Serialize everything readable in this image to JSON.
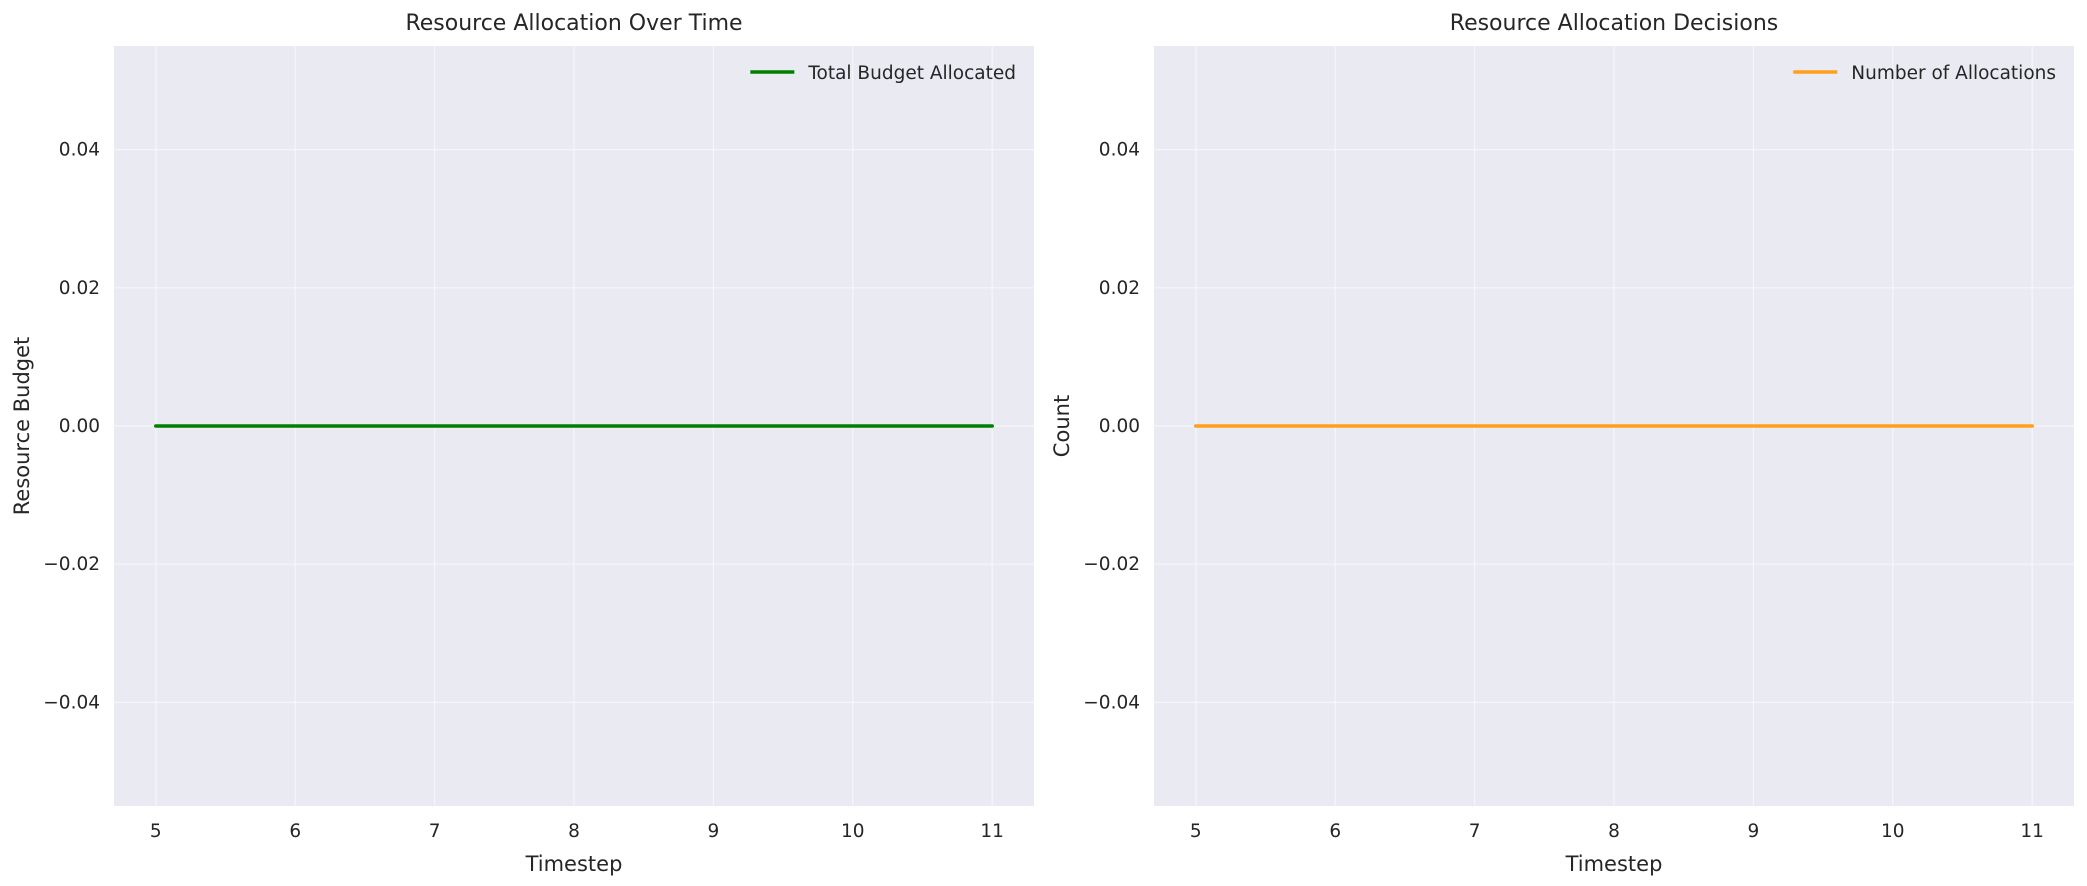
{
  "chart_data": [
    {
      "type": "line",
      "title": "Resource Allocation Over Time",
      "xlabel": "Timestep",
      "ylabel": "Resource Budget",
      "x": [
        5,
        6,
        7,
        8,
        9,
        10,
        11
      ],
      "series": [
        {
          "name": "Total Budget Allocated",
          "color": "#008000",
          "values": [
            0,
            0,
            0,
            0,
            0,
            0,
            0
          ]
        }
      ],
      "xlim": [
        4.7,
        11.3
      ],
      "ylim": [
        -0.055,
        0.055
      ],
      "xticks": [
        5,
        6,
        7,
        8,
        9,
        10,
        11
      ],
      "xtick_labels": [
        "5",
        "6",
        "7",
        "8",
        "9",
        "10",
        "11"
      ],
      "yticks": [
        -0.04,
        -0.02,
        0,
        0.02,
        0.04
      ],
      "ytick_labels": [
        "−0.04",
        "−0.02",
        "0.00",
        "0.02",
        "0.04"
      ],
      "grid": true,
      "legend_position": "top-right"
    },
    {
      "type": "line",
      "title": "Resource Allocation Decisions",
      "xlabel": "Timestep",
      "ylabel": "Count",
      "x": [
        5,
        6,
        7,
        8,
        9,
        10,
        11
      ],
      "series": [
        {
          "name": "Number of Allocations",
          "color": "#ff9f1c",
          "values": [
            0,
            0,
            0,
            0,
            0,
            0,
            0
          ]
        }
      ],
      "xlim": [
        4.7,
        11.3
      ],
      "ylim": [
        -0.055,
        0.055
      ],
      "xticks": [
        5,
        6,
        7,
        8,
        9,
        10,
        11
      ],
      "xtick_labels": [
        "5",
        "6",
        "7",
        "8",
        "9",
        "10",
        "11"
      ],
      "yticks": [
        -0.04,
        -0.02,
        0,
        0.02,
        0.04
      ],
      "ytick_labels": [
        "−0.04",
        "−0.02",
        "0.00",
        "0.02",
        "0.04"
      ],
      "grid": true,
      "legend_position": "top-right"
    }
  ],
  "colors": {
    "plot_background": "#eaeaf2",
    "grid": "#ffffff",
    "text": "#262626"
  }
}
